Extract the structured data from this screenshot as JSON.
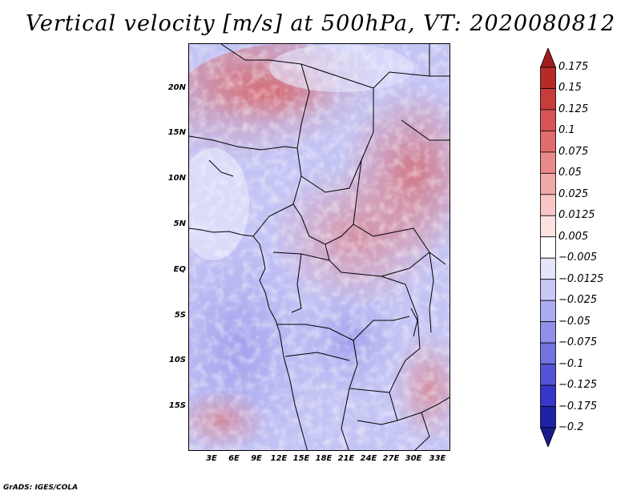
{
  "title": "Vertical velocity [m/s] at 500hPa, VT: 2020080812",
  "credit": "GrADS: IGES/COLA",
  "y_axis_labels": [
    "20N",
    "15N",
    "10N",
    "5N",
    "EQ",
    "5S",
    "10S",
    "15S"
  ],
  "x_axis_labels": [
    "3E",
    "6E",
    "9E",
    "12E",
    "15E",
    "18E",
    "21E",
    "24E",
    "27E",
    "30E",
    "33E"
  ],
  "colorbar": {
    "labels": [
      "0.175",
      "0.15",
      "0.125",
      "0.1",
      "0.075",
      "0.05",
      "0.025",
      "0.0125",
      "0.005",
      "-0.005",
      "-0.0125",
      "-0.025",
      "-0.05",
      "-0.075",
      "-0.1",
      "-0.125",
      "-0.175",
      "-0.2"
    ],
    "colors": [
      "#a01c1c",
      "#b82a2a",
      "#c83c3c",
      "#d65454",
      "#e06c6c",
      "#e98a8a",
      "#f1a8a8",
      "#f8c6c6",
      "#fde2e2",
      "#ffffff",
      "#e4e4fb",
      "#c8c8f6",
      "#acacf0",
      "#9090ea",
      "#7272e0",
      "#5454d6",
      "#3636c8",
      "#2020a8",
      "#1a1a90"
    ]
  }
}
